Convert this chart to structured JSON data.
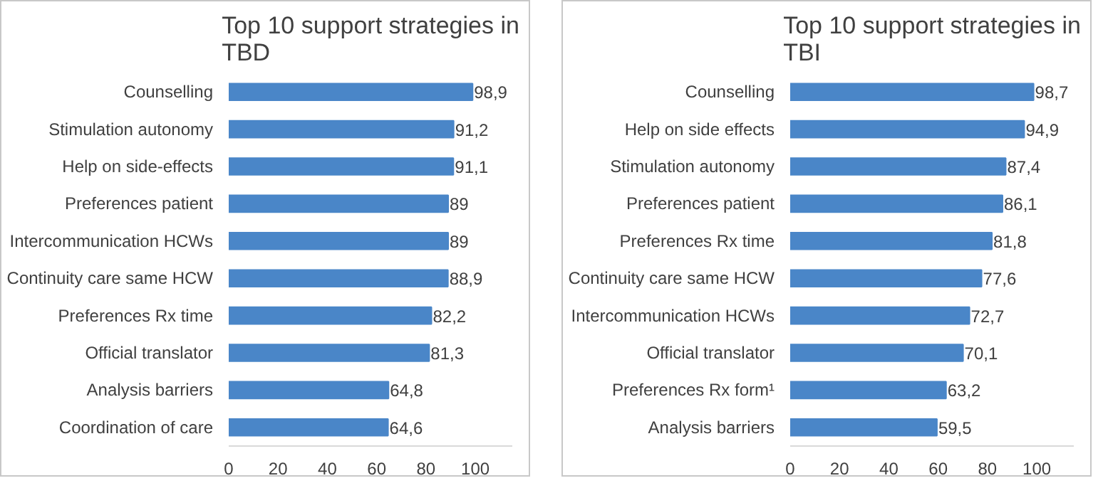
{
  "chart_data": [
    {
      "type": "bar",
      "orientation": "horizontal",
      "title": "Top 10 support strategies in TBD",
      "categories": [
        "Counselling",
        "Stimulation autonomy",
        "Help on side-effects",
        "Preferences patient",
        "Intercommunication HCWs",
        "Continuity care same HCW",
        "Preferences Rx time",
        "Official translator",
        "Analysis barriers",
        "Coordination of care"
      ],
      "values": [
        98.9,
        91.2,
        91.1,
        89,
        89,
        88.9,
        82.2,
        81.3,
        64.8,
        64.6
      ],
      "value_labels": [
        "98,9",
        "91,2",
        "91,1",
        "89",
        "89",
        "88,9",
        "82,2",
        "81,3",
        "64,8",
        "64,6"
      ],
      "color": "#4a86c8",
      "xlim": [
        0,
        115
      ],
      "xticks": [
        0,
        20,
        40,
        60,
        80,
        100
      ],
      "grid": false
    },
    {
      "type": "bar",
      "orientation": "horizontal",
      "title": "Top 10 support strategies in TBI",
      "categories": [
        "Counselling",
        "Help on side effects",
        "Stimulation autonomy",
        "Preferences patient",
        "Preferences Rx time",
        "Continuity care same HCW",
        "Intercommunication HCWs",
        "Official translator",
        "Preferences Rx form¹",
        "Analysis barriers"
      ],
      "values": [
        98.7,
        94.9,
        87.4,
        86.1,
        81.8,
        77.6,
        72.7,
        70.1,
        63.2,
        59.5
      ],
      "value_labels": [
        "98,7",
        "94,9",
        "87,4",
        "86,1",
        "81,8",
        "77,6",
        "72,7",
        "70,1",
        "63,2",
        "59,5"
      ],
      "color": "#4a86c8",
      "xlim": [
        0,
        115
      ],
      "xticks": [
        0,
        20,
        40,
        60,
        80,
        100
      ],
      "grid": false
    }
  ]
}
